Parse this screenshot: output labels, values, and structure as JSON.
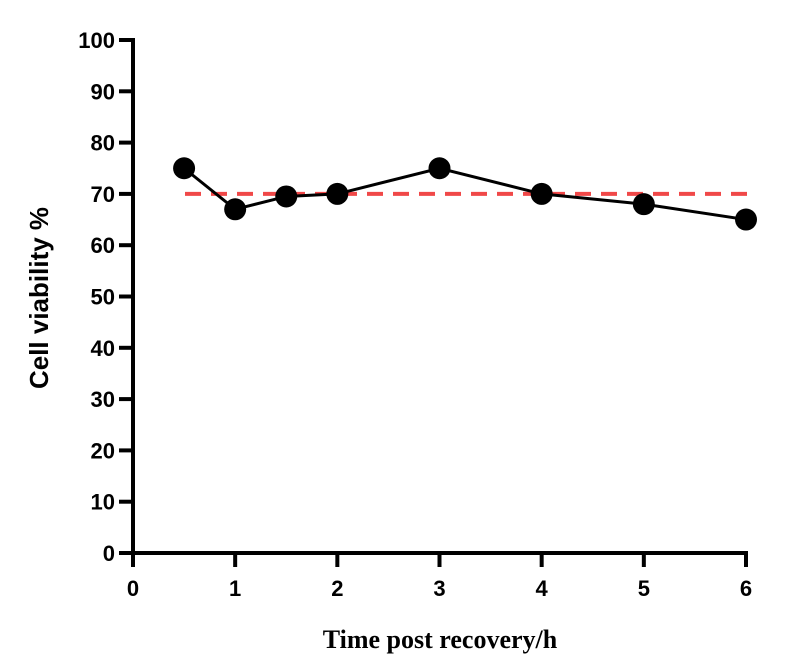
{
  "chart_data": {
    "type": "line",
    "title": "",
    "xlabel": "Time post recovery/h",
    "ylabel": "Cell viability %",
    "xlim": [
      0,
      6
    ],
    "ylim": [
      0,
      100
    ],
    "xticks": [
      "0",
      "1",
      "2",
      "3",
      "4",
      "5",
      "6"
    ],
    "yticks": [
      "0",
      "10",
      "20",
      "30",
      "40",
      "50",
      "60",
      "70",
      "80",
      "90",
      "100"
    ],
    "grid": false,
    "series": [
      {
        "x": [
          0.5,
          1,
          1.5,
          2,
          3,
          4,
          5,
          6
        ],
        "y": [
          75,
          67,
          69.5,
          70,
          75,
          70,
          68,
          65
        ],
        "color": "#000000",
        "marker": "circle"
      }
    ],
    "reference_lines": [
      {
        "y": 70,
        "style": "dashed",
        "color": "#f04848"
      }
    ]
  }
}
